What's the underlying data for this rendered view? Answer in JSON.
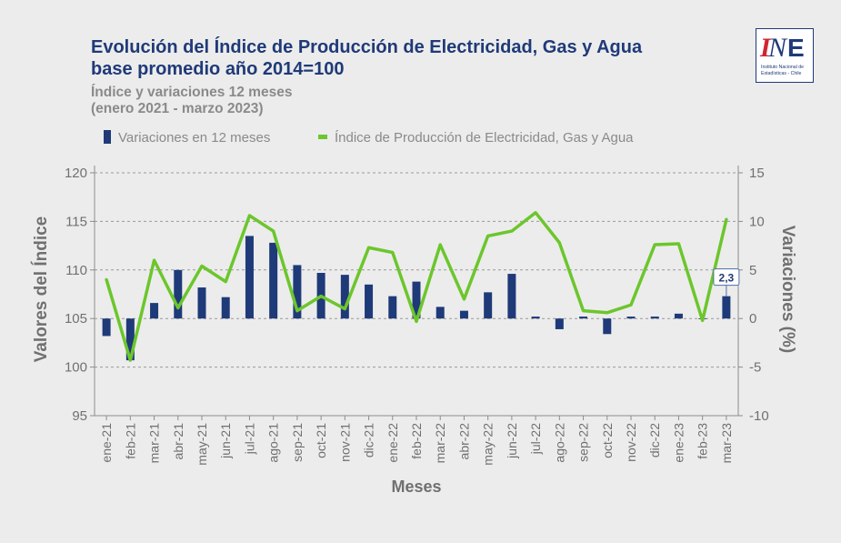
{
  "header": {
    "title_line1": "Evolución del Índice de Producción de Electricidad, Gas y Agua",
    "title_line2": "base promedio año 2014=100",
    "subtitle_line1": "Índice y variaciones 12 meses",
    "subtitle_line2": "(enero 2021 - marzo 2023)"
  },
  "logo": {
    "text": "INE",
    "caption_line1": "Instituto Nacional de",
    "caption_line2": "Estadísticas - Chile"
  },
  "colors": {
    "bar": "#1f3a78",
    "line": "#6cc62c",
    "title": "#1f3a78",
    "axis_text": "#707070",
    "logo_red": "#d0262f"
  },
  "chart_data": {
    "type": "bar",
    "xlabel": "Meses",
    "ylabel": "Valores del Índice",
    "y2label": "Variaciones (%)",
    "categories": [
      "ene-21",
      "feb-21",
      "mar-21",
      "abr-21",
      "may-21",
      "jun-21",
      "jul-21",
      "ago-21",
      "sep-21",
      "oct-21",
      "nov-21",
      "dic-21",
      "ene-22",
      "feb-22",
      "mar-22",
      "abr-22",
      "may-22",
      "jun-22",
      "jul-22",
      "ago-22",
      "sep-22",
      "oct-22",
      "nov-22",
      "dic-22",
      "ene-23",
      "feb-23",
      "mar-23"
    ],
    "ylim": [
      95,
      120
    ],
    "y_ticks": [
      95,
      100,
      105,
      110,
      115,
      120
    ],
    "y2lim": [
      -10,
      15
    ],
    "y2_ticks": [
      -10,
      -5,
      0,
      5,
      10,
      15
    ],
    "grid": true,
    "legend_position": "top",
    "series": [
      {
        "name": "Variaciones en 12 meses",
        "type": "bar",
        "axis": "right",
        "values": [
          -1.8,
          -4.3,
          1.6,
          5.0,
          3.2,
          2.2,
          8.5,
          7.8,
          5.5,
          4.7,
          4.5,
          3.5,
          2.3,
          3.8,
          1.2,
          0.8,
          2.7,
          4.6,
          0.2,
          -1.1,
          0.2,
          -1.6,
          0.2,
          0.2,
          0.5,
          0.0,
          2.3
        ]
      },
      {
        "name": "Índice de Producción de Electricidad, Gas y Agua",
        "type": "line",
        "axis": "left",
        "values": [
          109.0,
          100.7,
          111.0,
          106.1,
          110.4,
          108.8,
          115.6,
          114.0,
          105.8,
          107.3,
          106.0,
          112.3,
          111.8,
          104.7,
          112.6,
          107.0,
          113.5,
          114.0,
          115.9,
          112.8,
          105.8,
          105.6,
          106.4,
          112.6,
          112.7,
          104.8,
          115.2
        ]
      }
    ],
    "annotations": [
      {
        "category": "mar-23",
        "text": "2,3"
      }
    ]
  }
}
